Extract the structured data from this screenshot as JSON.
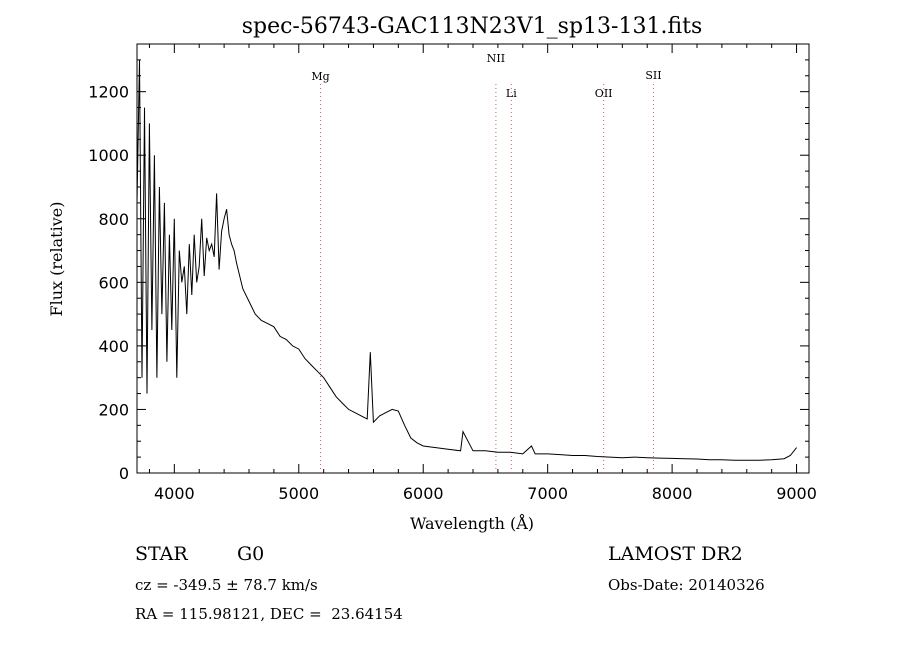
{
  "chart_data": {
    "type": "line",
    "title": "spec-56743-GAC113N23V1_sp13-131.fits",
    "xlabel": "Wavelength (Å)",
    "ylabel": "Flux (relative)",
    "xlim": [
      3700,
      9100
    ],
    "ylim": [
      0,
      1350
    ],
    "xticks": [
      4000,
      5000,
      6000,
      7000,
      8000,
      9000
    ],
    "yticks": [
      0,
      200,
      400,
      600,
      800,
      1000,
      1200
    ],
    "grid": false,
    "series": [
      {
        "x": [
          3700,
          3720,
          3740,
          3760,
          3780,
          3800,
          3820,
          3840,
          3860,
          3880,
          3900,
          3920,
          3940,
          3960,
          3980,
          4000,
          4020,
          4040,
          4060,
          4080,
          4100,
          4120,
          4140,
          4160,
          4180,
          4200,
          4220,
          4240,
          4260,
          4280,
          4300,
          4320,
          4340,
          4360,
          4380,
          4400,
          4420,
          4440,
          4460,
          4480,
          4500,
          4550,
          4600,
          4650,
          4700,
          4750,
          4800,
          4850,
          4900,
          4950,
          5000,
          5050,
          5100,
          5150,
          5200,
          5250,
          5300,
          5350,
          5400,
          5450,
          5500,
          5550,
          5575,
          5600,
          5650,
          5700,
          5750,
          5800,
          5850,
          5900,
          5950,
          6000,
          6100,
          6200,
          6300,
          6320,
          6400,
          6500,
          6600,
          6700,
          6800,
          6870,
          6900,
          7000,
          7100,
          7200,
          7300,
          7400,
          7500,
          7600,
          7700,
          7800,
          7900,
          8000,
          8100,
          8200,
          8300,
          8400,
          8500,
          8600,
          8700,
          8800,
          8900,
          8950,
          9000
        ],
        "y": [
          850,
          1300,
          300,
          1150,
          250,
          1100,
          450,
          1000,
          300,
          900,
          500,
          850,
          350,
          750,
          450,
          800,
          300,
          700,
          600,
          650,
          500,
          720,
          560,
          750,
          600,
          650,
          800,
          620,
          740,
          700,
          720,
          680,
          880,
          640,
          760,
          800,
          830,
          750,
          720,
          700,
          660,
          580,
          540,
          500,
          480,
          470,
          460,
          430,
          420,
          400,
          390,
          360,
          340,
          320,
          300,
          270,
          240,
          220,
          200,
          190,
          180,
          170,
          380,
          160,
          180,
          190,
          200,
          195,
          150,
          110,
          95,
          85,
          80,
          75,
          70,
          130,
          70,
          70,
          65,
          65,
          60,
          85,
          60,
          60,
          58,
          55,
          55,
          52,
          50,
          48,
          50,
          48,
          47,
          46,
          45,
          44,
          42,
          42,
          40,
          40,
          40,
          42,
          45,
          55,
          80
        ]
      }
    ],
    "line_markers": [
      {
        "label": "Mg",
        "x": 5175
      },
      {
        "label": "NII",
        "x": 6584
      },
      {
        "label": "Li",
        "x": 6708
      },
      {
        "label": "OII",
        "x": 7450
      },
      {
        "label": "SII",
        "x": 7850
      }
    ]
  },
  "info": {
    "object_class": "STAR",
    "subclass": "G0",
    "survey": "LAMOST DR2",
    "velocity": "cz = -349.5 ± 78.7 km/s",
    "obs_date": "Obs-Date: 20140326",
    "coords": "RA = 115.98121, DEC =  23.64154"
  }
}
